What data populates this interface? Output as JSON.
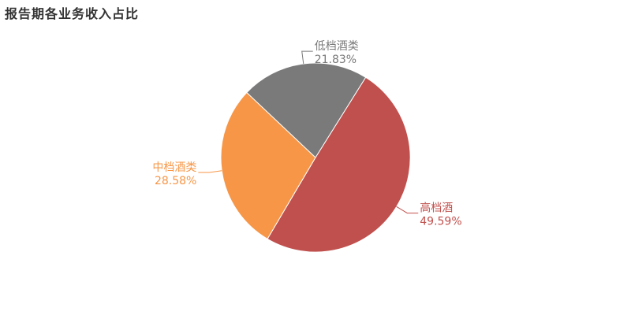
{
  "title": "报告期各业务收入占比",
  "chart_data": {
    "type": "pie",
    "title": "报告期各业务收入占比",
    "start_angle_deg": 58,
    "direction": "clockwise",
    "slices": [
      {
        "name": "高档酒",
        "value": 49.59,
        "label": "49.59%",
        "color": "#c0504d"
      },
      {
        "name": "中档酒类",
        "value": 28.58,
        "label": "28.58%",
        "color": "#f79646"
      },
      {
        "name": "低档酒类",
        "value": 21.83,
        "label": "21.83%",
        "color": "#7a7a7a"
      }
    ]
  }
}
